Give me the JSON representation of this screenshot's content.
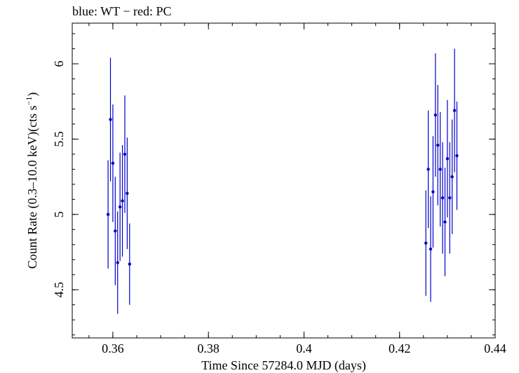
{
  "title": "blue: WT − red: PC",
  "chart_data": {
    "type": "scatter",
    "title": "blue: WT − red: PC",
    "xlabel": "Time Since 57284.0 MJD (days)",
    "ylabel_prefix": "Count Rate (0.3–10.0 keV)(cts s",
    "ylabel_exp": "−1",
    "ylabel_suffix": ")",
    "xlim": [
      0.3515,
      0.44
    ],
    "ylim": [
      4.18,
      6.27
    ],
    "xticks": [
      0.36,
      0.38,
      0.4,
      0.42,
      0.44
    ],
    "xtick_labels": [
      "0.36",
      "0.38",
      "0.4",
      "0.42",
      "0.44"
    ],
    "yticks": [
      4.5,
      5.0,
      5.5,
      6.0
    ],
    "ytick_labels": [
      "4.5",
      "5",
      "5.5",
      "6"
    ],
    "series": [
      {
        "name": "WT",
        "color": "#0000cc",
        "points": [
          {
            "x": 0.359,
            "y": 5.0,
            "err": 0.36
          },
          {
            "x": 0.3595,
            "y": 5.63,
            "err": 0.41
          },
          {
            "x": 0.36,
            "y": 5.34,
            "err": 0.39
          },
          {
            "x": 0.3605,
            "y": 4.89,
            "err": 0.36
          },
          {
            "x": 0.361,
            "y": 4.68,
            "err": 0.34
          },
          {
            "x": 0.3615,
            "y": 5.05,
            "err": 0.36
          },
          {
            "x": 0.362,
            "y": 5.09,
            "err": 0.37
          },
          {
            "x": 0.3625,
            "y": 5.4,
            "err": 0.39
          },
          {
            "x": 0.363,
            "y": 5.14,
            "err": 0.37
          },
          {
            "x": 0.3635,
            "y": 4.67,
            "err": 0.27
          },
          {
            "x": 0.4255,
            "y": 4.81,
            "err": 0.35
          },
          {
            "x": 0.426,
            "y": 5.3,
            "err": 0.39
          },
          {
            "x": 0.4265,
            "y": 4.77,
            "err": 0.35
          },
          {
            "x": 0.427,
            "y": 5.15,
            "err": 0.37
          },
          {
            "x": 0.4275,
            "y": 5.66,
            "err": 0.41
          },
          {
            "x": 0.428,
            "y": 5.46,
            "err": 0.4
          },
          {
            "x": 0.4285,
            "y": 5.3,
            "err": 0.38
          },
          {
            "x": 0.429,
            "y": 5.11,
            "err": 0.37
          },
          {
            "x": 0.4295,
            "y": 4.95,
            "err": 0.36
          },
          {
            "x": 0.43,
            "y": 5.37,
            "err": 0.39
          },
          {
            "x": 0.4305,
            "y": 5.11,
            "err": 0.37
          },
          {
            "x": 0.431,
            "y": 5.25,
            "err": 0.38
          },
          {
            "x": 0.4315,
            "y": 5.69,
            "err": 0.41
          },
          {
            "x": 0.432,
            "y": 5.39,
            "err": 0.36
          }
        ]
      }
    ]
  }
}
